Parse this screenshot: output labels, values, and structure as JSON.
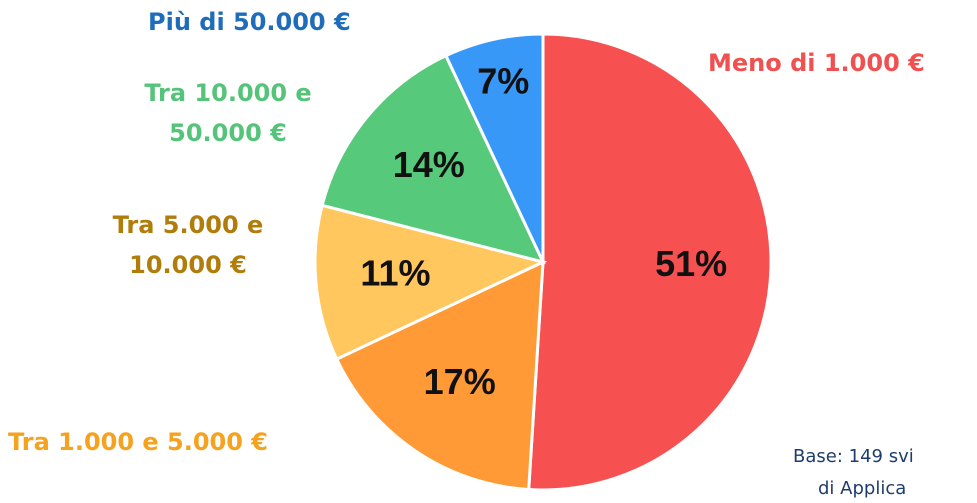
{
  "chart_data": {
    "type": "pie",
    "categories": [
      "Meno di 1.000 €",
      "Tra 1.000 e 5.000 €",
      "Tra 5.000 e 10.000 €",
      "Tra 10.000 e 50.000 €",
      "Più di 50.000 €"
    ],
    "values": [
      51,
      17,
      11,
      14,
      7
    ],
    "value_labels": [
      "51%",
      "17%",
      "11%",
      "14%",
      "7%"
    ],
    "colors": [
      "#f75050",
      "#ff9a36",
      "#ffc75e",
      "#57c97a",
      "#3898f8"
    ],
    "label_colors": [
      "#f05050",
      "#f5a21e",
      "#b07d0a",
      "#55c47a",
      "#1f6dba"
    ],
    "note": [
      "Base: 149 svi",
      "di Applica"
    ]
  }
}
